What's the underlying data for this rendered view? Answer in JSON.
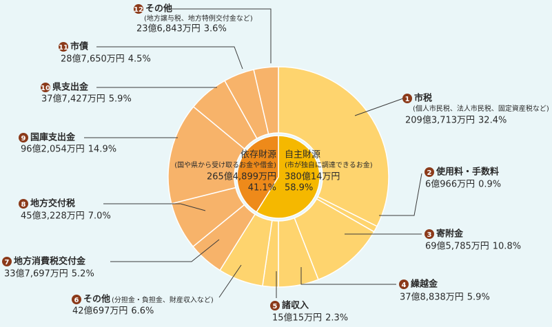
{
  "chart_data": {
    "type": "donut",
    "inner": {
      "categories": [
        "自主財源",
        "依存財源"
      ],
      "notes": [
        "(市が独自に調達できるお金)",
        "(国や県から受け取るお金や借金)"
      ],
      "amounts": [
        "380億14万円",
        "265億4,899万円"
      ],
      "values": [
        58.9,
        41.1
      ],
      "value_labels": [
        "58.9%",
        "41.1%"
      ],
      "colors": [
        "#f5b800",
        "#ee8a1a"
      ]
    },
    "outer": {
      "markers": [
        "1",
        "2",
        "3",
        "4",
        "5",
        "6",
        "7",
        "8",
        "9",
        "10",
        "11",
        "12"
      ],
      "categories": [
        "市税",
        "使用料・手数料",
        "寄附金",
        "繰越金",
        "諸収入",
        "その他",
        "地方消費税交付金",
        "地方交付税",
        "国庫支出金",
        "県支出金",
        "市債",
        "その他"
      ],
      "notes": [
        "(個人市民税、法人市民税、固定資産税など)",
        null,
        null,
        null,
        null,
        "(分担金・負担金、財産収入など)",
        null,
        null,
        null,
        null,
        null,
        "(地方譲与税、地方特例交付金など)"
      ],
      "amounts": [
        "209億3,713万円",
        "6億966万円",
        "69億5,785万円",
        "37億8,838万円",
        "15億15万円",
        "42億697万円",
        "33億7,697万円",
        "45億3,228万円",
        "96億2,054万円",
        "37億7,427万円",
        "28億7,650万円",
        "23億6,843万円"
      ],
      "values": [
        32.4,
        0.9,
        10.8,
        5.9,
        2.3,
        6.6,
        5.2,
        7.0,
        14.9,
        5.9,
        4.5,
        3.6
      ],
      "value_labels": [
        "32.4%",
        "0.9%",
        "10.8%",
        "5.9%",
        "2.3%",
        "6.6%",
        "5.2%",
        "7.0%",
        "14.9%",
        "5.9%",
        "4.5%",
        "3.6%"
      ],
      "colors": [
        "#fed46e",
        "#fed46e",
        "#fed46e",
        "#fed46e",
        "#fed46e",
        "#fed46e",
        "#f7b36a",
        "#f7b36a",
        "#f7b36a",
        "#f7b36a",
        "#f7b36a",
        "#f7b36a"
      ]
    }
  }
}
